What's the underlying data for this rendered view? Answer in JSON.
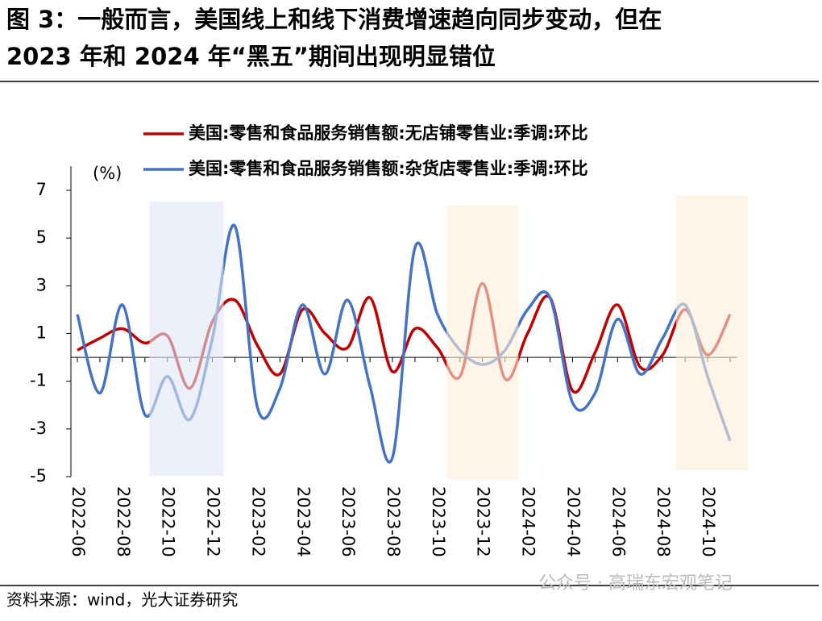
{
  "chart_data": {
    "type": "line",
    "title": "图 3：一般而言，美国线上和线下消费增速趋向同步变动，但在",
    "subtitle": "2023 年和 2024 年“黑五”期间出现明显错位",
    "y_unit": "(%)",
    "source": "资料来源：wind，光大证券研究",
    "watermark": "公众号 · 高瑞东宏观笔记",
    "categories": [
      "2022-06",
      null,
      "2022-08",
      null,
      "2022-10",
      null,
      "2022-12",
      null,
      "2023-02",
      null,
      "2023-04",
      null,
      "2023-06",
      null,
      "2023-08",
      null,
      "2023-10",
      null,
      "2023-12",
      null,
      "2024-02",
      null,
      "2024-04",
      null,
      "2024-06",
      null,
      "2024-08",
      null,
      "2024-10",
      null
    ],
    "series": [
      {
        "name": "美国:零售和食品服务销售额:无店铺零售业:季调:环比",
        "color": "#c00000",
        "values": [
          0.3,
          0.8,
          1.2,
          0.6,
          0.9,
          -1.3,
          1.5,
          2.4,
          0.5,
          -0.7,
          2.0,
          1.0,
          0.4,
          2.5,
          -0.6,
          1.2,
          0.4,
          -0.8,
          3.1,
          -0.9,
          1.0,
          2.5,
          -1.4,
          0.2,
          2.2,
          -0.4,
          0.1,
          2.0,
          0.1,
          1.8
        ]
      },
      {
        "name": "美国:零售和食品服务销售额:杂货店零售业:季调:环比",
        "color": "#4472c4",
        "values": [
          1.8,
          -1.5,
          2.2,
          -2.4,
          -0.8,
          -2.6,
          0.8,
          5.5,
          -2.1,
          -1.3,
          2.2,
          -0.7,
          2.4,
          -1.2,
          -4.2,
          4.6,
          1.8,
          0.3,
          -0.3,
          0.3,
          2.0,
          2.5,
          -1.9,
          -1.5,
          1.6,
          -0.7,
          0.8,
          2.2,
          -0.8,
          -3.5
        ]
      }
    ],
    "ylim": [
      -5,
      7
    ],
    "yticks": [
      7,
      5,
      3,
      1,
      -1,
      -3,
      -5
    ],
    "grid": false
  }
}
